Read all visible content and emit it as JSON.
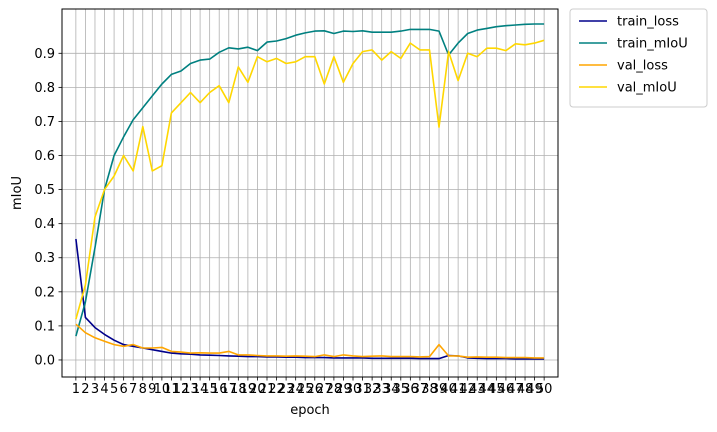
{
  "chart_data": {
    "type": "line",
    "xlabel": "epoch",
    "ylabel": "mIoU",
    "x": [
      1,
      2,
      3,
      4,
      5,
      6,
      7,
      8,
      9,
      10,
      11,
      12,
      13,
      14,
      15,
      16,
      17,
      18,
      19,
      20,
      21,
      22,
      23,
      24,
      25,
      26,
      27,
      28,
      29,
      30,
      31,
      32,
      33,
      34,
      35,
      36,
      37,
      38,
      39,
      40,
      41,
      42,
      43,
      44,
      45,
      46,
      47,
      48,
      49,
      50
    ],
    "xticks": [
      "1",
      "2",
      "3",
      "4",
      "5",
      "6",
      "7",
      "8",
      "9",
      "10",
      "11",
      "12",
      "13",
      "14",
      "15",
      "16",
      "17",
      "18",
      "19",
      "20",
      "21",
      "22",
      "23",
      "24",
      "25",
      "26",
      "27",
      "28",
      "29",
      "30",
      "31",
      "32",
      "33",
      "34",
      "35",
      "36",
      "37",
      "38",
      "39",
      "40",
      "41",
      "42",
      "43",
      "44",
      "45",
      "46",
      "47",
      "48",
      "49",
      "50"
    ],
    "yticks": [
      "0.0",
      "0.1",
      "0.2",
      "0.3",
      "0.4",
      "0.5",
      "0.6",
      "0.7",
      "0.8",
      "0.9"
    ],
    "ytick_values": [
      0.0,
      0.1,
      0.2,
      0.3,
      0.4,
      0.5,
      0.6,
      0.7,
      0.8,
      0.9
    ],
    "xlim": [
      -0.45,
      51.45
    ],
    "ylim": [
      -0.05,
      1.03
    ],
    "grid": true,
    "legend_position": "outside-top-right",
    "series": [
      {
        "name": "train_loss",
        "color": "#00008b",
        "values": [
          0.355,
          0.125,
          0.095,
          0.075,
          0.058,
          0.045,
          0.04,
          0.035,
          0.03,
          0.025,
          0.02,
          0.018,
          0.017,
          0.015,
          0.014,
          0.013,
          0.012,
          0.011,
          0.01,
          0.01,
          0.009,
          0.009,
          0.008,
          0.008,
          0.007,
          0.007,
          0.007,
          0.006,
          0.006,
          0.006,
          0.006,
          0.005,
          0.005,
          0.005,
          0.005,
          0.005,
          0.004,
          0.004,
          0.004,
          0.013,
          0.012,
          0.006,
          0.005,
          0.004,
          0.004,
          0.004,
          0.003,
          0.003,
          0.003,
          0.003
        ]
      },
      {
        "name": "train_mIoU",
        "color": "#008080",
        "values": [
          0.07,
          0.17,
          0.33,
          0.5,
          0.6,
          0.655,
          0.705,
          0.74,
          0.775,
          0.81,
          0.838,
          0.848,
          0.87,
          0.88,
          0.883,
          0.903,
          0.916,
          0.913,
          0.918,
          0.908,
          0.933,
          0.936,
          0.943,
          0.953,
          0.96,
          0.965,
          0.966,
          0.958,
          0.965,
          0.964,
          0.966,
          0.962,
          0.962,
          0.962,
          0.965,
          0.97,
          0.97,
          0.97,
          0.965,
          0.895,
          0.93,
          0.958,
          0.968,
          0.973,
          0.978,
          0.981,
          0.983,
          0.985,
          0.986,
          0.986
        ]
      },
      {
        "name": "val_loss",
        "color": "#ffa500",
        "values": [
          0.105,
          0.08,
          0.065,
          0.055,
          0.045,
          0.04,
          0.045,
          0.035,
          0.035,
          0.037,
          0.025,
          0.023,
          0.02,
          0.021,
          0.02,
          0.02,
          0.025,
          0.015,
          0.015,
          0.013,
          0.012,
          0.012,
          0.011,
          0.012,
          0.011,
          0.01,
          0.015,
          0.01,
          0.015,
          0.012,
          0.01,
          0.011,
          0.012,
          0.01,
          0.01,
          0.01,
          0.009,
          0.01,
          0.045,
          0.012,
          0.012,
          0.008,
          0.009,
          0.008,
          0.008,
          0.007,
          0.007,
          0.007,
          0.006,
          0.006
        ]
      },
      {
        "name": "val_mIoU",
        "color": "#ffd700",
        "values": [
          0.12,
          0.22,
          0.42,
          0.5,
          0.54,
          0.6,
          0.555,
          0.685,
          0.555,
          0.57,
          0.725,
          0.755,
          0.785,
          0.755,
          0.785,
          0.805,
          0.755,
          0.86,
          0.815,
          0.89,
          0.875,
          0.885,
          0.87,
          0.875,
          0.89,
          0.89,
          0.81,
          0.89,
          0.815,
          0.87,
          0.905,
          0.91,
          0.88,
          0.905,
          0.885,
          0.93,
          0.91,
          0.91,
          0.683,
          0.905,
          0.82,
          0.9,
          0.89,
          0.915,
          0.915,
          0.908,
          0.928,
          0.925,
          0.93,
          0.938
        ]
      }
    ]
  }
}
